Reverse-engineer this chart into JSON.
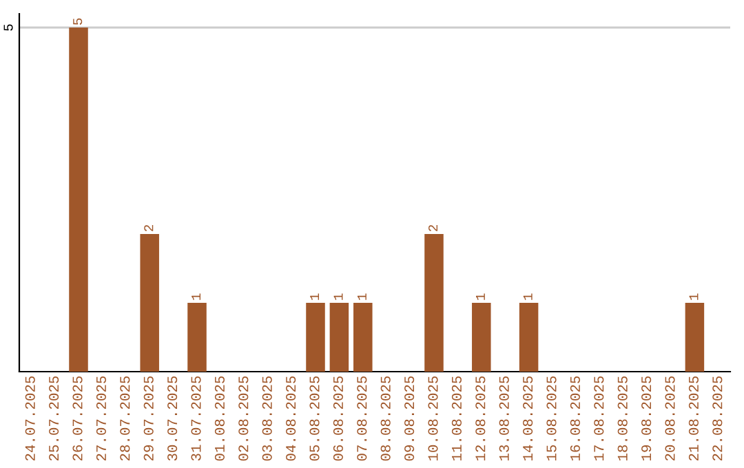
{
  "chart_data": {
    "type": "bar",
    "categories": [
      "24.07.2025",
      "25.07.2025",
      "26.07.2025",
      "27.07.2025",
      "28.07.2025",
      "29.07.2025",
      "30.07.2025",
      "31.07.2025",
      "01.08.2025",
      "02.08.2025",
      "03.08.2025",
      "04.08.2025",
      "05.08.2025",
      "06.08.2025",
      "07.08.2025",
      "08.08.2025",
      "09.08.2025",
      "10.08.2025",
      "11.08.2025",
      "12.08.2025",
      "13.08.2025",
      "14.08.2025",
      "15.08.2025",
      "16.08.2025",
      "17.08.2025",
      "18.08.2025",
      "19.08.2025",
      "20.08.2025",
      "21.08.2025",
      "22.08.2025"
    ],
    "values": [
      0,
      0,
      5,
      0,
      0,
      2,
      0,
      1,
      0,
      0,
      0,
      0,
      1,
      1,
      1,
      0,
      0,
      2,
      0,
      1,
      0,
      1,
      0,
      0,
      0,
      0,
      0,
      0,
      1,
      0
    ],
    "value_labels": [
      null,
      null,
      "5",
      null,
      null,
      "2",
      null,
      "1",
      null,
      null,
      null,
      null,
      "1",
      "1",
      "1",
      null,
      null,
      "2",
      null,
      "1",
      null,
      "1",
      null,
      null,
      null,
      null,
      null,
      null,
      "1",
      null
    ],
    "color": "#a0572a",
    "ylim": [
      0,
      5.2
    ],
    "yticks": [
      5
    ],
    "grid": "y"
  }
}
